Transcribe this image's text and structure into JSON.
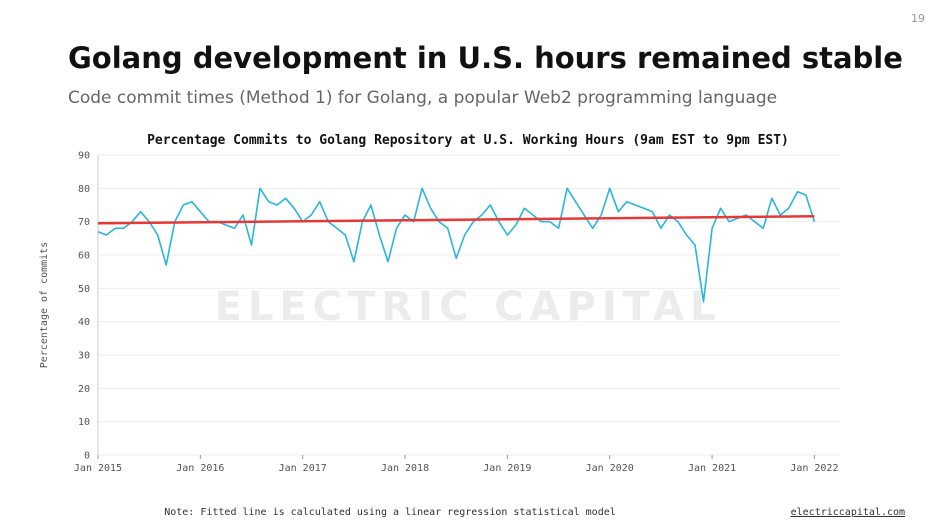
{
  "page_number": "19",
  "title": "Golang development in U.S. hours remained stable",
  "subtitle": "Code commit times (Method 1) for Golang, a popular Web2 programming language",
  "watermark": "ELECTRIC CAPITAL",
  "note": "Note: Fitted line is calculated using a linear regression statistical model",
  "link": "electriccapital.com",
  "chart_data": {
    "type": "line",
    "title": "Percentage Commits to Golang Repository at U.S. Working Hours (9am EST to 9pm EST)",
    "y_label": "Percentage of commits",
    "x": [
      "2015-01",
      "2015-02",
      "2015-03",
      "2015-04",
      "2015-05",
      "2015-06",
      "2015-07",
      "2015-08",
      "2015-09",
      "2015-10",
      "2015-11",
      "2015-12",
      "2016-01",
      "2016-02",
      "2016-03",
      "2016-04",
      "2016-05",
      "2016-06",
      "2016-07",
      "2016-08",
      "2016-09",
      "2016-10",
      "2016-11",
      "2016-12",
      "2017-01",
      "2017-02",
      "2017-03",
      "2017-04",
      "2017-05",
      "2017-06",
      "2017-07",
      "2017-08",
      "2017-09",
      "2017-10",
      "2017-11",
      "2017-12",
      "2018-01",
      "2018-02",
      "2018-03",
      "2018-04",
      "2018-05",
      "2018-06",
      "2018-07",
      "2018-08",
      "2018-09",
      "2018-10",
      "2018-11",
      "2018-12",
      "2019-01",
      "2019-02",
      "2019-03",
      "2019-04",
      "2019-05",
      "2019-06",
      "2019-07",
      "2019-08",
      "2019-09",
      "2019-10",
      "2019-11",
      "2019-12",
      "2020-01",
      "2020-02",
      "2020-03",
      "2020-04",
      "2020-05",
      "2020-06",
      "2020-07",
      "2020-08",
      "2020-09",
      "2020-10",
      "2020-11",
      "2020-12",
      "2021-01",
      "2021-02",
      "2021-03",
      "2021-04",
      "2021-05",
      "2021-06",
      "2021-07",
      "2021-08",
      "2021-09",
      "2021-10",
      "2021-11",
      "2021-12",
      "2022-01"
    ],
    "series": [
      {
        "color": "#29b5e0",
        "values": [
          67,
          66,
          68,
          68,
          70,
          73,
          70,
          66,
          57,
          70,
          75,
          76,
          73,
          70,
          70,
          69,
          68,
          72,
          63,
          80,
          76,
          75,
          77,
          74,
          70,
          72,
          76,
          70,
          68,
          66,
          58,
          70,
          75,
          66,
          58,
          68,
          72,
          70,
          80,
          74,
          70,
          68,
          59,
          66,
          70,
          72,
          75,
          70,
          66,
          69,
          74,
          72,
          70,
          70,
          68,
          80,
          76,
          72,
          68,
          72,
          80,
          73,
          76,
          75,
          74,
          73,
          68,
          72,
          70,
          66,
          63,
          46,
          68,
          74,
          70,
          71,
          72,
          70,
          68,
          77,
          72,
          74,
          79,
          78,
          70
        ]
      },
      {
        "color": "#e53935",
        "x": [
          "2015-01",
          "2022-01"
        ],
        "values": [
          69.5,
          71.6
        ]
      }
    ],
    "xlim": [
      "2015-01",
      "2022-04"
    ],
    "xticks": [
      {
        "value": "2015-01",
        "label": "Jan 2015"
      },
      {
        "value": "2016-01",
        "label": "Jan 2016"
      },
      {
        "value": "2017-01",
        "label": "Jan 2017"
      },
      {
        "value": "2018-01",
        "label": "Jan 2018"
      },
      {
        "value": "2019-01",
        "label": "Jan 2019"
      },
      {
        "value": "2020-01",
        "label": "Jan 2020"
      },
      {
        "value": "2021-01",
        "label": "Jan 2021"
      },
      {
        "value": "2022-01",
        "label": "Jan 2022"
      }
    ],
    "ylim": [
      0,
      90
    ],
    "yticks": [
      0,
      10,
      20,
      30,
      40,
      50,
      60,
      70,
      80,
      90
    ],
    "grid": true
  }
}
